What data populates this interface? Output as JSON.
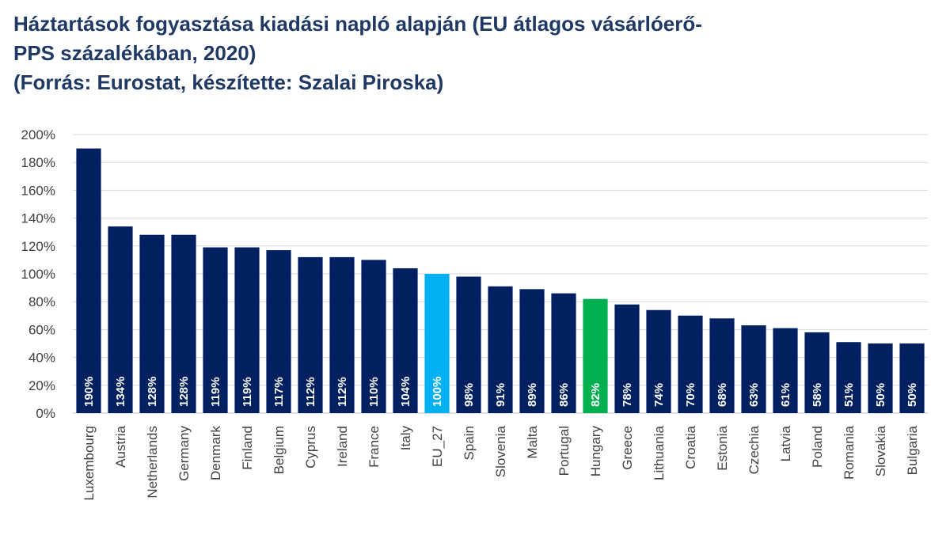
{
  "title": {
    "line1": "Háztartások fogyasztása kiadási napló alapján (EU átlagos vásárlóerő-",
    "line2": "PPS százalékában, 2020)",
    "line3": "(Forrás: Eurostat, készítette: Szalai Piroska)"
  },
  "chart_data": {
    "type": "bar",
    "title": "Háztartások fogyasztása kiadási napló alapján (EU átlagos vásárlóerő-PPS százalékában, 2020)",
    "subtitle": "(Forrás: Eurostat, készítette: Szalai Piroska)",
    "xlabel": "",
    "ylabel": "",
    "ylim": [
      0,
      200
    ],
    "yticks": [
      0,
      20,
      40,
      60,
      80,
      100,
      120,
      140,
      160,
      180,
      200
    ],
    "ytick_labels": [
      "0%",
      "20%",
      "40%",
      "60%",
      "80%",
      "100%",
      "120%",
      "140%",
      "160%",
      "180%",
      "200%"
    ],
    "grid": true,
    "legend": "none",
    "categories": [
      "Luxembourg",
      "Austria",
      "Netherlands",
      "Germany",
      "Denmark",
      "Finland",
      "Belgium",
      "Cyprus",
      "Ireland",
      "France",
      "Italy",
      "EU_27",
      "Spain",
      "Slovenia",
      "Malta",
      "Portugal",
      "Hungary",
      "Greece",
      "Lithuania",
      "Croatia",
      "Estonia",
      "Czechia",
      "Latvia",
      "Poland",
      "Romania",
      "Slovakia",
      "Bulgaria"
    ],
    "values": [
      190,
      134,
      128,
      128,
      119,
      119,
      117,
      112,
      112,
      110,
      104,
      100,
      98,
      91,
      89,
      86,
      82,
      78,
      74,
      70,
      68,
      63,
      61,
      58,
      51,
      50,
      50
    ],
    "data_labels": [
      "190%",
      "134%",
      "128%",
      "128%",
      "119%",
      "119%",
      "117%",
      "112%",
      "112%",
      "110%",
      "104%",
      "100%",
      "98%",
      "91%",
      "89%",
      "86%",
      "82%",
      "78%",
      "74%",
      "70%",
      "68%",
      "63%",
      "61%",
      "58%",
      "51%",
      "50%",
      "50%"
    ],
    "colors": {
      "default": "#002060",
      "highlight": {
        "EU_27": "#00b0f0",
        "Hungary": "#00b050"
      },
      "title": "#1f3864",
      "grid": "#d9d9d9",
      "axis_text": "#404040"
    }
  }
}
